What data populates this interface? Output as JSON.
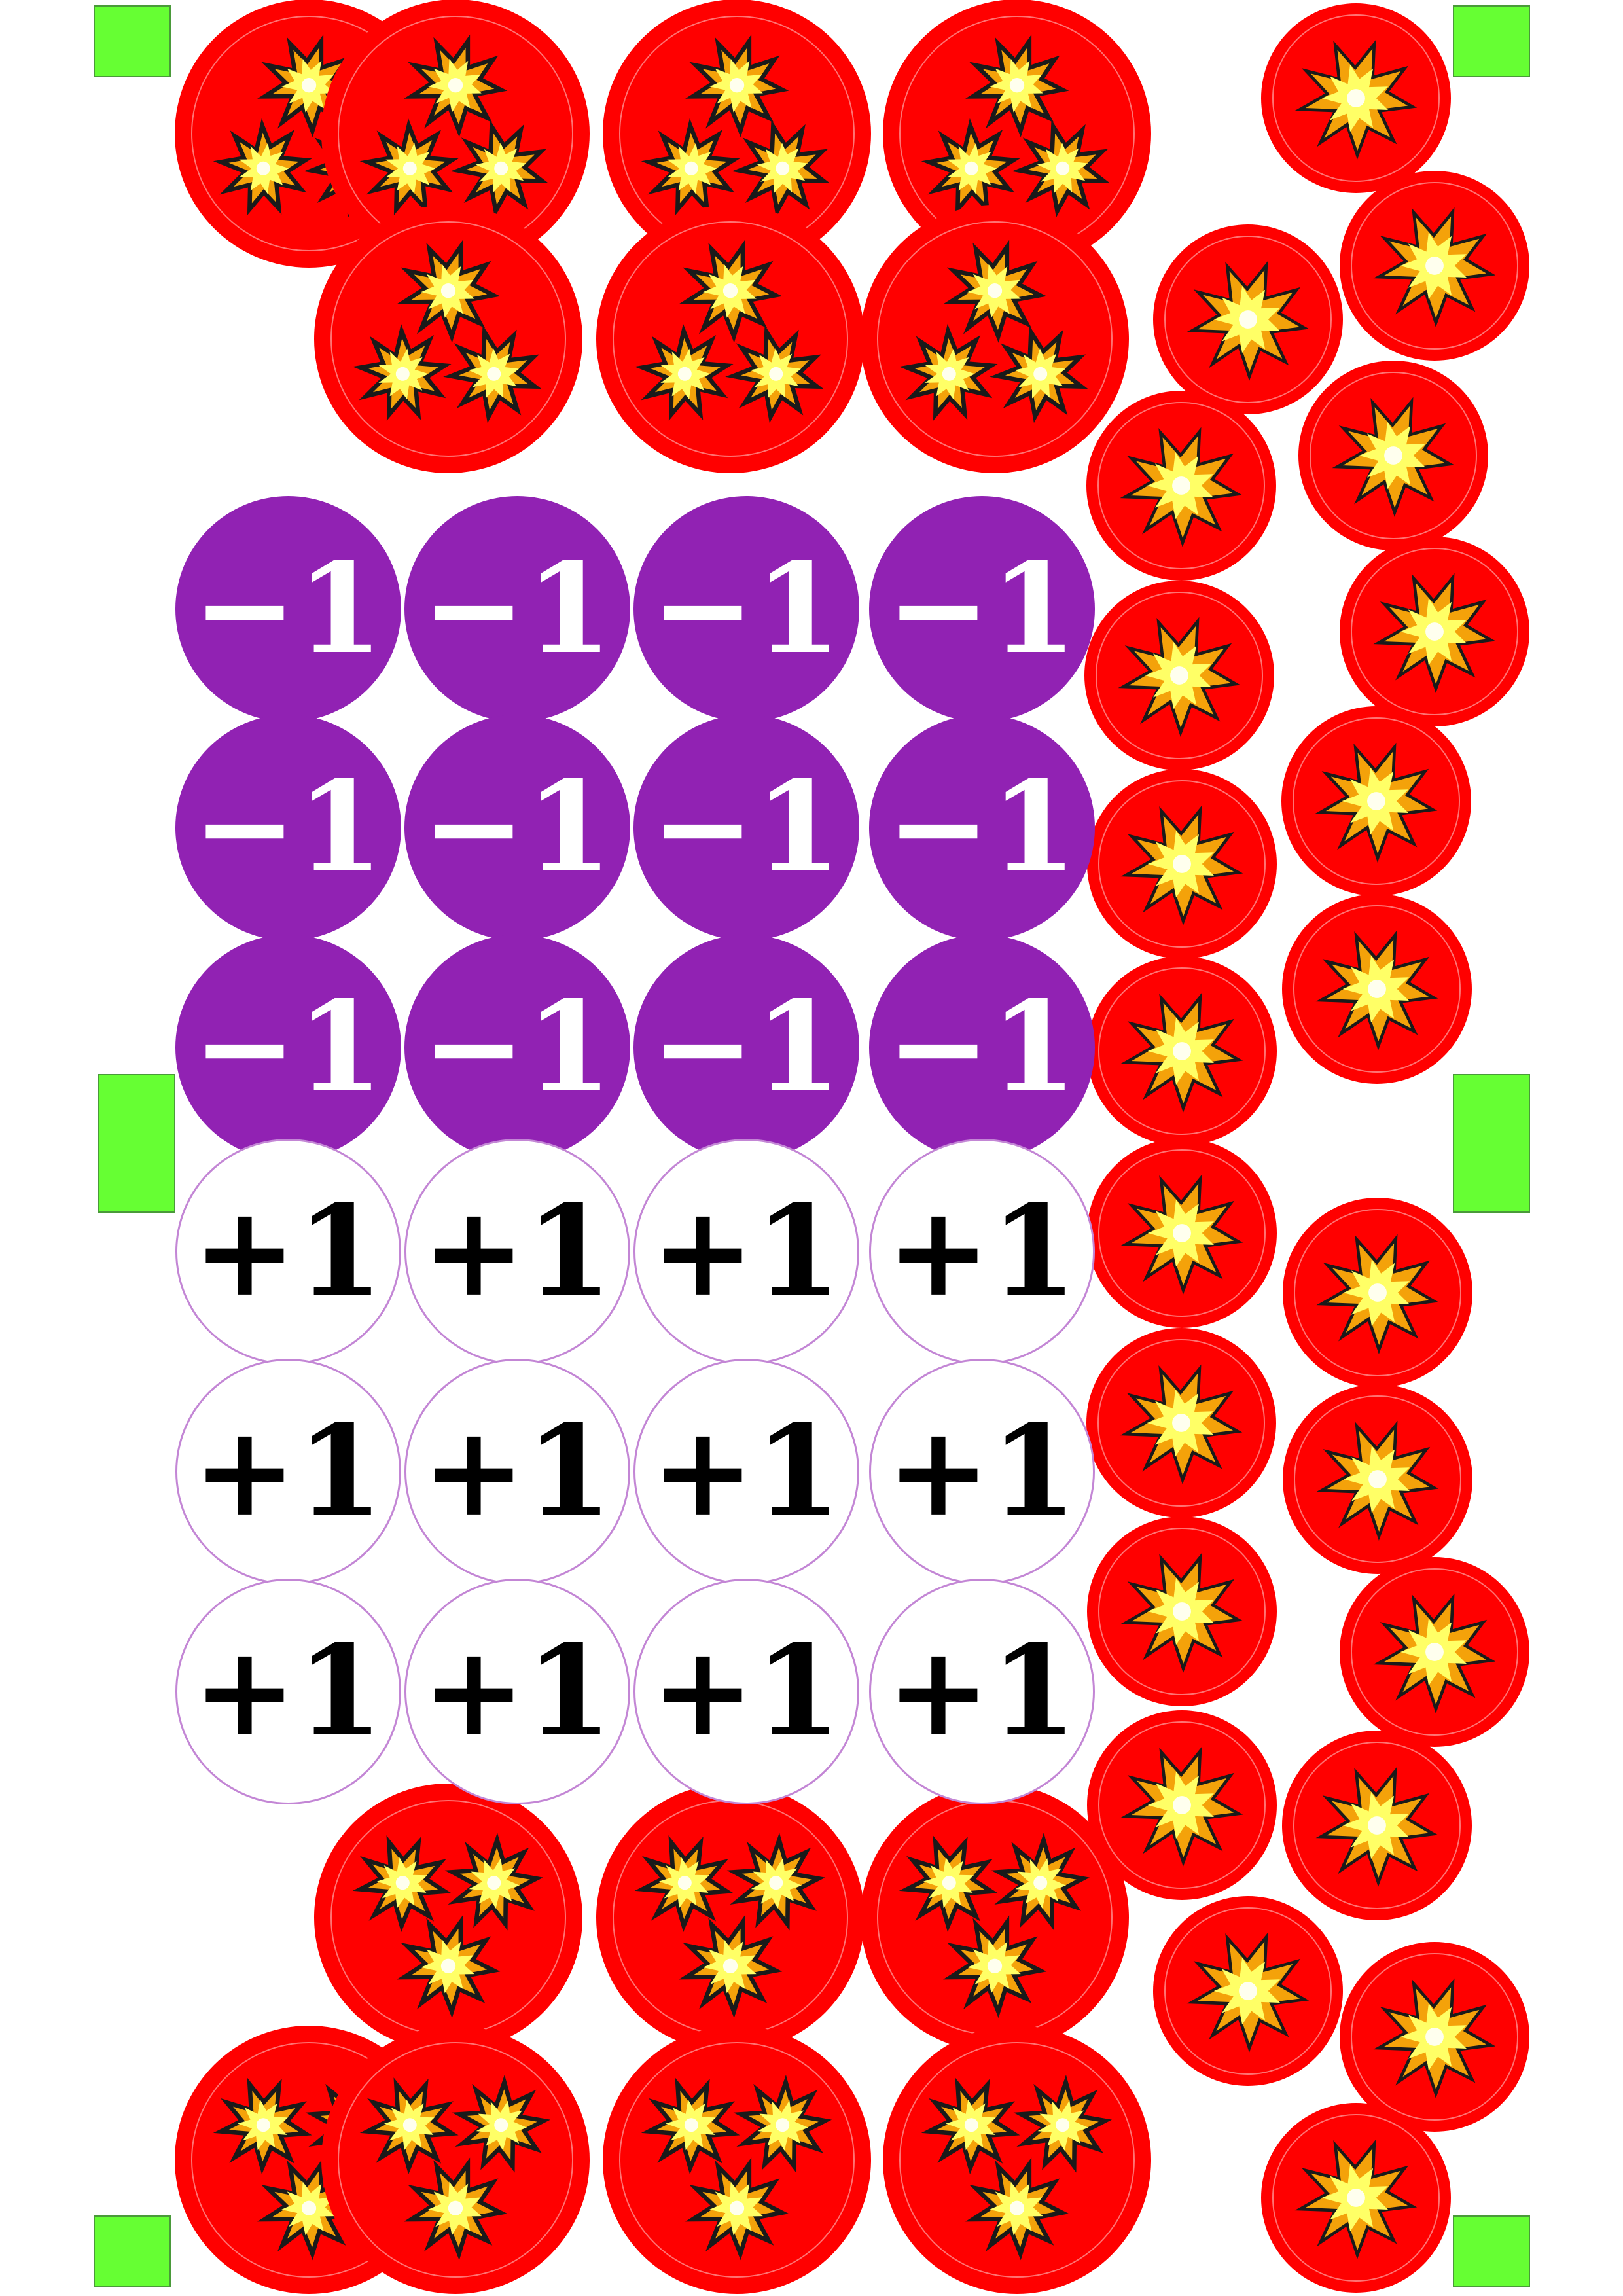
{
  "colors": {
    "damage_token": "#ff0000",
    "burst_outer": "#f4a20a",
    "burst_inner": "#ffff66",
    "burst_stroke": "#1a1a1a",
    "minus_token": "#9122b3",
    "plus_token": "#ffffff",
    "registration_mark": "#66ff33"
  },
  "icons": {
    "damage_triple": "triple-explosion-icon",
    "damage_single": "explosion-icon"
  },
  "counters": {
    "minus_label": "−1",
    "plus_label": "+1"
  }
}
